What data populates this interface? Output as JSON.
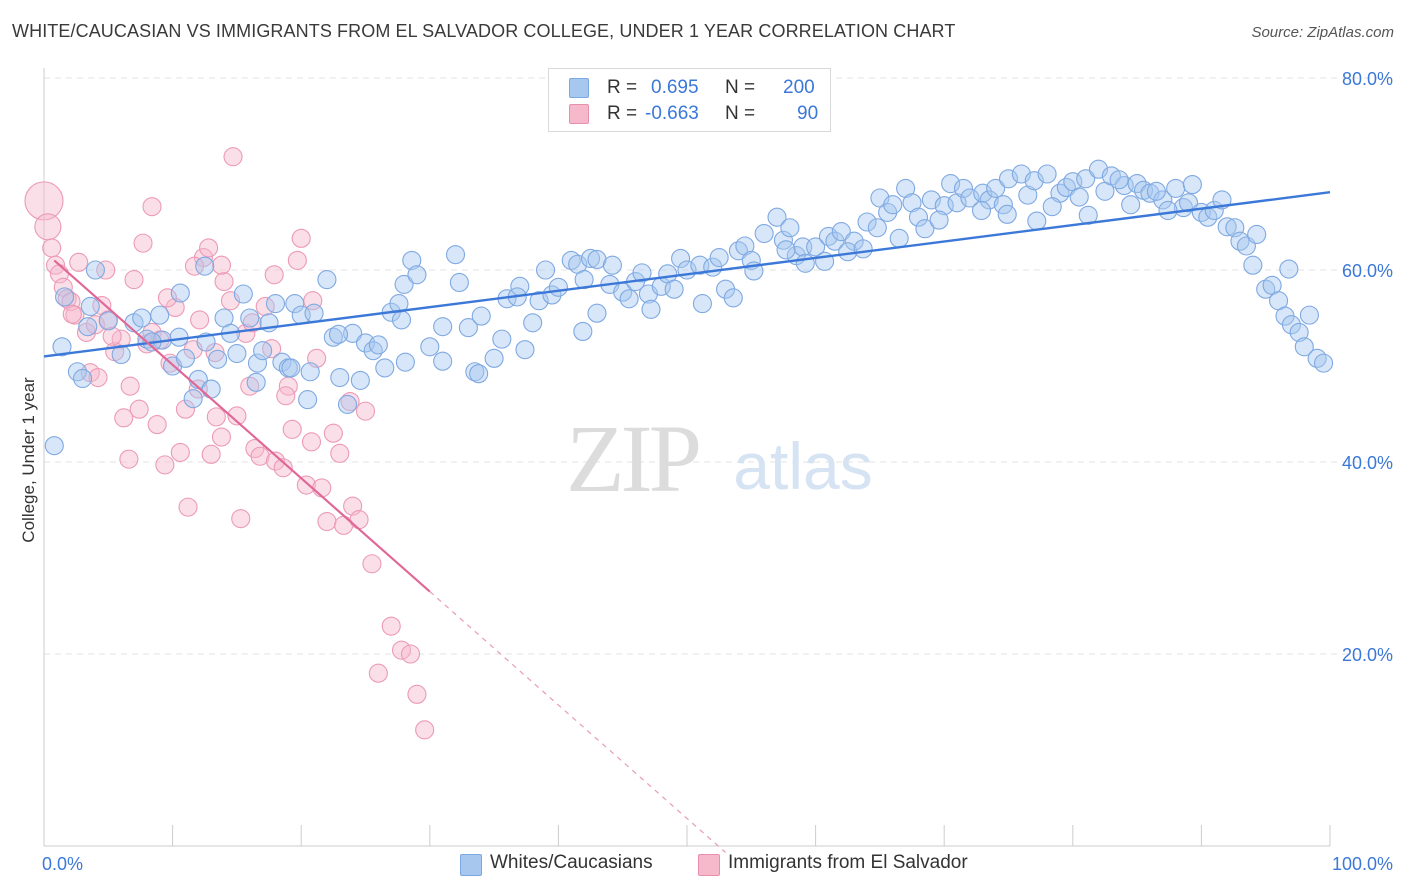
{
  "title": "WHITE/CAUCASIAN VS IMMIGRANTS FROM EL SALVADOR COLLEGE, UNDER 1 YEAR CORRELATION CHART",
  "source": "Source: ZipAtlas.com",
  "watermark": {
    "zip": "ZIP",
    "atlas": "atlas"
  },
  "legend": {
    "rows": [
      {
        "r_label": "R =",
        "r_value": "0.695",
        "n_label": "N =",
        "n_value": "200",
        "color": "#a7c7ef"
      },
      {
        "r_label": "R =",
        "r_value": "-0.663",
        "n_label": "N =",
        "n_value": "90",
        "color": "#f6b9cc"
      }
    ]
  },
  "bottom_legend": [
    {
      "label": "Whites/Caucasians",
      "color": "#a7c7ef"
    },
    {
      "label": "Immigrants from El Salvador",
      "color": "#f6b9cc"
    }
  ],
  "chart_data": {
    "type": "scatter",
    "title": "WHITE/CAUCASIAN VS IMMIGRANTS FROM EL SALVADOR COLLEGE, UNDER 1 YEAR CORRELATION CHART",
    "xlabel": "",
    "ylabel": "College, Under 1 year",
    "xlim": [
      0,
      100
    ],
    "ylim": [
      0,
      80
    ],
    "x_tick_labels": [
      {
        "value": 0,
        "label": "0.0%"
      },
      {
        "value": 100,
        "label": "100.0%"
      }
    ],
    "y_tick_labels": [
      {
        "value": 20,
        "label": "20.0%"
      },
      {
        "value": 40,
        "label": "40.0%"
      },
      {
        "value": 60,
        "label": "60.0%"
      },
      {
        "value": 80,
        "label": "80.0%"
      }
    ],
    "grid": true,
    "legend_position": "top-center",
    "colors": {
      "blue": "#3b78d8",
      "blue_fill": "#a7c7ef",
      "pink": "#e06897",
      "pink_fill": "#f6b9cc"
    },
    "series": [
      {
        "name": "Whites/Caucasians",
        "color": "#a7c7ef",
        "trendline": {
          "x": [
            0,
            100
          ],
          "y": [
            51,
            68.1
          ],
          "dashed_x": []
        },
        "points": [
          [
            0.8,
            41.7
          ],
          [
            1.4,
            52
          ],
          [
            2.6,
            49.4
          ],
          [
            3,
            48.7
          ],
          [
            3.4,
            54.1
          ],
          [
            4,
            60
          ],
          [
            5,
            54.7
          ],
          [
            6,
            51.2
          ],
          [
            7,
            54.5
          ],
          [
            7.6,
            55
          ],
          [
            8,
            52.8
          ],
          [
            9,
            55.3
          ],
          [
            9.2,
            52.7
          ],
          [
            10,
            50
          ],
          [
            10.5,
            53
          ],
          [
            11,
            50.8
          ],
          [
            11.6,
            46.6
          ],
          [
            12,
            48.6
          ],
          [
            12.5,
            60.4
          ],
          [
            13,
            47.6
          ],
          [
            13.5,
            50.7
          ],
          [
            14,
            55
          ],
          [
            14.5,
            53.4
          ],
          [
            15,
            51.3
          ],
          [
            15.5,
            57.5
          ],
          [
            16,
            55
          ],
          [
            16.6,
            50.3
          ],
          [
            17,
            51.6
          ],
          [
            17.5,
            54.5
          ],
          [
            18,
            56.5
          ],
          [
            18.5,
            50.4
          ],
          [
            19,
            49.8
          ],
          [
            19.5,
            56.5
          ],
          [
            20,
            55.3
          ],
          [
            20.5,
            46.5
          ],
          [
            21,
            55.5
          ],
          [
            22,
            59
          ],
          [
            22.5,
            53
          ],
          [
            23,
            48.8
          ],
          [
            23.6,
            46
          ],
          [
            24,
            53.4
          ],
          [
            24.6,
            48.5
          ],
          [
            25,
            52.4
          ],
          [
            25.6,
            51.6
          ],
          [
            26,
            52.2
          ],
          [
            27,
            55.6
          ],
          [
            27.6,
            56.5
          ],
          [
            28,
            58.5
          ],
          [
            28.6,
            61
          ],
          [
            29,
            59.5
          ],
          [
            30,
            52
          ],
          [
            31,
            50.5
          ],
          [
            32,
            61.6
          ],
          [
            32.3,
            58.7
          ],
          [
            33,
            54
          ],
          [
            33.5,
            49.4
          ],
          [
            34,
            55.2
          ],
          [
            35,
            50.8
          ],
          [
            35.6,
            52.8
          ],
          [
            36,
            57
          ],
          [
            37,
            58.3
          ],
          [
            38,
            54.5
          ],
          [
            38.5,
            56.8
          ],
          [
            39,
            60
          ],
          [
            39.5,
            57.4
          ],
          [
            40,
            58.2
          ],
          [
            41,
            61
          ],
          [
            41.5,
            60.6
          ],
          [
            42,
            59
          ],
          [
            42.5,
            61.2
          ],
          [
            43,
            61.1
          ],
          [
            44,
            58.5
          ],
          [
            45,
            57.7
          ],
          [
            45.5,
            57
          ],
          [
            46,
            58.8
          ],
          [
            46.5,
            59.7
          ],
          [
            47,
            57.5
          ],
          [
            48,
            58.3
          ],
          [
            48.5,
            59.6
          ],
          [
            49,
            58
          ],
          [
            49.5,
            61.2
          ],
          [
            50,
            60
          ],
          [
            51,
            60.5
          ],
          [
            52,
            60.3
          ],
          [
            52.5,
            61.3
          ],
          [
            53,
            58
          ],
          [
            54,
            62
          ],
          [
            54.5,
            62.5
          ],
          [
            55,
            61
          ],
          [
            56,
            63.8
          ],
          [
            57,
            65.5
          ],
          [
            57.5,
            63.1
          ],
          [
            58,
            64.4
          ],
          [
            58.5,
            61.5
          ],
          [
            59,
            62.4
          ],
          [
            60,
            62.4
          ],
          [
            61,
            63.5
          ],
          [
            61.5,
            63
          ],
          [
            62,
            64
          ],
          [
            63,
            63
          ],
          [
            64,
            65
          ],
          [
            65,
            67.5
          ],
          [
            65.6,
            66
          ],
          [
            66,
            66.8
          ],
          [
            67,
            68.5
          ],
          [
            67.5,
            67
          ],
          [
            68,
            65.5
          ],
          [
            68.5,
            64.3
          ],
          [
            69,
            67.3
          ],
          [
            70,
            66.7
          ],
          [
            70.5,
            69
          ],
          [
            71,
            67
          ],
          [
            71.5,
            68.5
          ],
          [
            72,
            67.5
          ],
          [
            73,
            68
          ],
          [
            73.5,
            67.3
          ],
          [
            74,
            68.5
          ],
          [
            74.6,
            66.8
          ],
          [
            75,
            69.5
          ],
          [
            76,
            70
          ],
          [
            76.5,
            67.8
          ],
          [
            77,
            69.3
          ],
          [
            78,
            70
          ],
          [
            79,
            68
          ],
          [
            79.5,
            68.6
          ],
          [
            80,
            69.2
          ],
          [
            81,
            69.5
          ],
          [
            82,
            70.5
          ],
          [
            82.5,
            68.2
          ],
          [
            83,
            69.8
          ],
          [
            84,
            68.8
          ],
          [
            85,
            69
          ],
          [
            85.5,
            68.3
          ],
          [
            86,
            68
          ],
          [
            87,
            67.3
          ],
          [
            88,
            68.5
          ],
          [
            88.6,
            66.5
          ],
          [
            89,
            67
          ],
          [
            90,
            66
          ],
          [
            90.5,
            65.5
          ],
          [
            91,
            66.2
          ],
          [
            92,
            64.5
          ],
          [
            92.6,
            64.4
          ],
          [
            93,
            63
          ],
          [
            93.5,
            62.5
          ],
          [
            94,
            60.5
          ],
          [
            95,
            58
          ],
          [
            95.5,
            58.4
          ],
          [
            96,
            56.8
          ],
          [
            96.5,
            55.2
          ],
          [
            97,
            54.3
          ],
          [
            97.6,
            53.5
          ],
          [
            98,
            52
          ],
          [
            99,
            50.8
          ],
          [
            99.5,
            50.3
          ],
          [
            10.6,
            57.6
          ],
          [
            20.7,
            49.4
          ],
          [
            26.5,
            49.8
          ],
          [
            31,
            54.1
          ],
          [
            43,
            55.5
          ],
          [
            51.2,
            56.5
          ],
          [
            62.5,
            61.9
          ],
          [
            66.5,
            63.3
          ],
          [
            69.6,
            65.2
          ],
          [
            74.9,
            65.8
          ],
          [
            78.4,
            66.6
          ],
          [
            81.2,
            65.7
          ],
          [
            84.5,
            66.8
          ],
          [
            87.4,
            66.2
          ],
          [
            19.2,
            49.8
          ],
          [
            8.4,
            52.5
          ],
          [
            27.8,
            54.8
          ],
          [
            36.8,
            57.2
          ],
          [
            41.9,
            53.6
          ],
          [
            47.2,
            55.9
          ],
          [
            53.6,
            57.1
          ],
          [
            57.7,
            62.1
          ],
          [
            60.7,
            60.9
          ],
          [
            64.8,
            64.4
          ],
          [
            1.6,
            57.2
          ],
          [
            3.6,
            56.2
          ],
          [
            12.6,
            52.5
          ],
          [
            28.1,
            50.4
          ],
          [
            37.4,
            51.7
          ],
          [
            44.2,
            60.5
          ],
          [
            55.2,
            59.9
          ],
          [
            59.2,
            60.7
          ],
          [
            63.7,
            62.2
          ],
          [
            72.9,
            66.2
          ],
          [
            77.2,
            65.1
          ],
          [
            80.5,
            67.6
          ],
          [
            83.6,
            69.4
          ],
          [
            86.5,
            68.2
          ],
          [
            89.3,
            68.9
          ],
          [
            91.6,
            67.3
          ],
          [
            94.3,
            63.7
          ],
          [
            96.8,
            60.1
          ],
          [
            98.4,
            55.3
          ],
          [
            22.9,
            53.3
          ],
          [
            16.5,
            48.3
          ],
          [
            33.8,
            49.2
          ]
        ]
      },
      {
        "name": "Immigrants from El Salvador",
        "color": "#f6b9cc",
        "trendline": {
          "x": [
            0.8,
            30
          ],
          "y": [
            61,
            26.5
          ],
          "dashed_x": [
            30,
            53
          ]
        },
        "points": [
          [
            0,
            67.2
          ],
          [
            0.3,
            64.5
          ],
          [
            0.6,
            62.3
          ],
          [
            0.9,
            60.5
          ],
          [
            1.2,
            59.6
          ],
          [
            1.5,
            58.2
          ],
          [
            1.8,
            57
          ],
          [
            2.1,
            56.7
          ],
          [
            2.4,
            55.3
          ],
          [
            2.7,
            60.8
          ],
          [
            3.3,
            53.5
          ],
          [
            3.6,
            49.3
          ],
          [
            4,
            54.3
          ],
          [
            4.5,
            56.3
          ],
          [
            4.8,
            60
          ],
          [
            5,
            54.8
          ],
          [
            5.5,
            51.5
          ],
          [
            6,
            52.8
          ],
          [
            6.2,
            44.6
          ],
          [
            6.6,
            40.3
          ],
          [
            7,
            59
          ],
          [
            7.4,
            45.5
          ],
          [
            8,
            52.3
          ],
          [
            8.4,
            53.5
          ],
          [
            8.8,
            43.9
          ],
          [
            9,
            52.7
          ],
          [
            9.4,
            39.7
          ],
          [
            9.8,
            50.3
          ],
          [
            10.2,
            56.1
          ],
          [
            10.6,
            41
          ],
          [
            11,
            45.5
          ],
          [
            11.2,
            35.3
          ],
          [
            11.6,
            51.7
          ],
          [
            12,
            47.6
          ],
          [
            12.4,
            61.3
          ],
          [
            12.8,
            62.3
          ],
          [
            13,
            40.8
          ],
          [
            13.4,
            44.7
          ],
          [
            13.8,
            42.6
          ],
          [
            14,
            58.8
          ],
          [
            14.5,
            56.8
          ],
          [
            15,
            44.8
          ],
          [
            15.3,
            34.1
          ],
          [
            15.7,
            53.4
          ],
          [
            16,
            47.9
          ],
          [
            16.4,
            41.4
          ],
          [
            16.8,
            40.6
          ],
          [
            17.2,
            56.2
          ],
          [
            17.7,
            51.8
          ],
          [
            18,
            40.1
          ],
          [
            18.6,
            39.4
          ],
          [
            19,
            47.9
          ],
          [
            19.3,
            43.4
          ],
          [
            20,
            63.3
          ],
          [
            20.4,
            37.6
          ],
          [
            20.8,
            42.1
          ],
          [
            21.2,
            50.8
          ],
          [
            21.6,
            37.3
          ],
          [
            22,
            33.8
          ],
          [
            22.5,
            43
          ],
          [
            23,
            40.9
          ],
          [
            23.3,
            33.4
          ],
          [
            23.8,
            46.3
          ],
          [
            24,
            35.4
          ],
          [
            24.5,
            34
          ],
          [
            25,
            45.3
          ],
          [
            25.5,
            29.4
          ],
          [
            26,
            18
          ],
          [
            27,
            22.9
          ],
          [
            27.8,
            20.4
          ],
          [
            28.5,
            20
          ],
          [
            29,
            15.8
          ],
          [
            29.6,
            12.1
          ],
          [
            14.7,
            71.8
          ],
          [
            8.4,
            66.6
          ],
          [
            11.7,
            60.4
          ],
          [
            13.8,
            60.5
          ],
          [
            16.2,
            54.5
          ],
          [
            17.9,
            59.5
          ],
          [
            6.7,
            47.9
          ],
          [
            4.2,
            48.8
          ],
          [
            2.2,
            55.4
          ],
          [
            13.3,
            51.4
          ],
          [
            18.8,
            46.9
          ],
          [
            5.3,
            53.1
          ],
          [
            19.7,
            61
          ],
          [
            7.7,
            62.8
          ],
          [
            12.1,
            54.8
          ],
          [
            9.6,
            57.1
          ],
          [
            20.9,
            56.8
          ]
        ]
      }
    ]
  }
}
